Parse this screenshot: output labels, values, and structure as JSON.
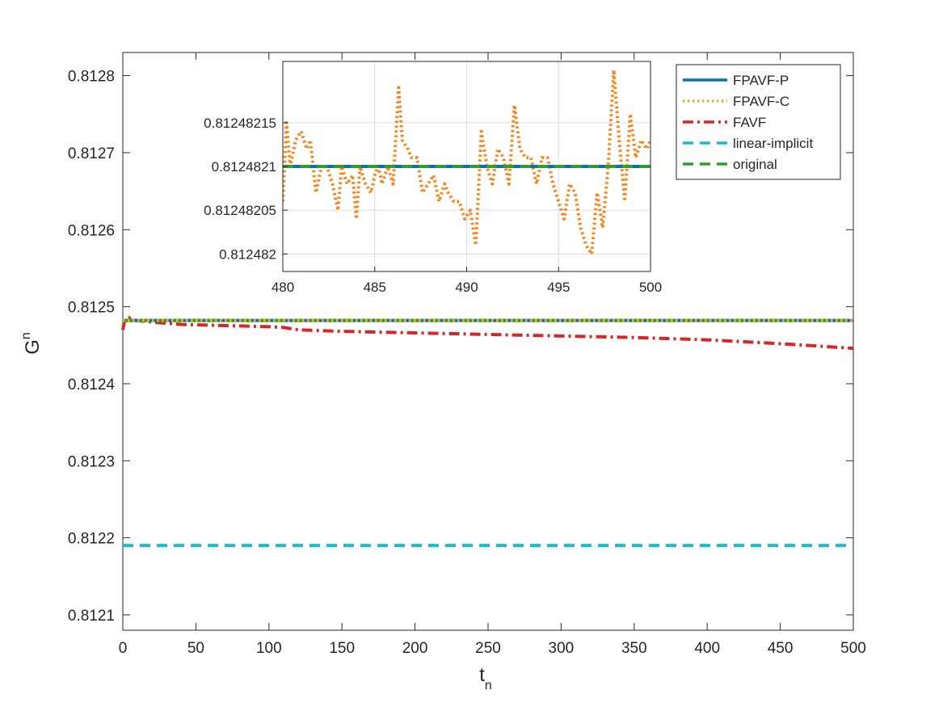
{
  "chart_data": [
    {
      "type": "line",
      "title": "",
      "xlabel": {
        "base": "t",
        "subscript": "n"
      },
      "ylabel": {
        "base": "G",
        "superscript": "n"
      },
      "xlim": [
        0,
        500
      ],
      "ylim": [
        0.81208,
        0.81283
      ],
      "xticks": [
        0,
        50,
        100,
        150,
        200,
        250,
        300,
        350,
        400,
        450,
        500
      ],
      "yticks": [
        0.8121,
        0.8122,
        0.8123,
        0.8124,
        0.8125,
        0.8126,
        0.8127,
        0.8128
      ],
      "grid": false,
      "legend": {
        "position": "top-right",
        "entries": [
          "FPAVF-P",
          "FPAVF-C",
          "FAVF",
          "linear-implicit",
          "original"
        ]
      },
      "series": [
        {
          "name": "FPAVF-P",
          "color": "#0072BD",
          "style": "solid",
          "x": [
            0,
            500
          ],
          "y": [
            0.8124821,
            0.8124821
          ]
        },
        {
          "name": "FPAVF-C",
          "color": "#EDB120",
          "style": "dotted",
          "x": [
            0,
            500
          ],
          "y": [
            0.8124821,
            0.8124821
          ]
        },
        {
          "name": "FAVF",
          "color": "#D62728",
          "style": "dashdot",
          "x": [
            0,
            1,
            2,
            4,
            6,
            10,
            20,
            40,
            60,
            80,
            100,
            110,
            120,
            150,
            200,
            250,
            300,
            350,
            400,
            450,
            500
          ],
          "y": [
            0.81247,
            0.81248,
            0.812484,
            0.812486,
            0.812483,
            0.812482,
            0.81248,
            0.812477,
            0.812476,
            0.812475,
            0.812474,
            0.812473,
            0.81247,
            0.812468,
            0.812466,
            0.812464,
            0.812462,
            0.81246,
            0.812457,
            0.812452,
            0.812446
          ]
        },
        {
          "name": "linear-implicit",
          "color": "#17BECF",
          "style": "dashed",
          "x": [
            0,
            500
          ],
          "y": [
            0.81219,
            0.81219
          ]
        },
        {
          "name": "original",
          "color": "#2CA02C",
          "style": "dashed",
          "x": [
            0,
            500
          ],
          "y": [
            0.8124822,
            0.8124822
          ]
        }
      ]
    },
    {
      "type": "line",
      "title": "",
      "xlabel": "",
      "ylabel": "",
      "xlim": [
        480,
        500
      ],
      "ylim": [
        0.81248198,
        0.81248222
      ],
      "xticks": [
        480,
        485,
        490,
        495,
        500
      ],
      "yticks": [
        0.812482,
        0.81248205,
        0.8124821,
        0.81248215
      ],
      "ytick_labels": [
        "0.812482",
        "0.81248205",
        "0.8124821",
        "0.81248215"
      ],
      "grid": true,
      "series": [
        {
          "name": "FPAVF-C",
          "color": "#FF7F0E",
          "style": "dotted",
          "x": [
            480,
            480.2,
            480.4,
            480.7,
            481,
            481.3,
            481.5,
            481.8,
            482.1,
            482.4,
            482.7,
            483,
            483.2,
            483.5,
            483.8,
            484,
            484.2,
            484.5,
            484.8,
            485,
            485.2,
            485.4,
            485.7,
            486,
            486.3,
            486.5,
            486.8,
            487,
            487.3,
            487.6,
            487.9,
            488.2,
            488.5,
            488.8,
            489,
            489.3,
            489.6,
            489.9,
            490.2,
            490.5,
            490.8,
            491.1,
            491.4,
            491.7,
            492,
            492.3,
            492.6,
            492.9,
            493.2,
            493.5,
            493.8,
            494.1,
            494.4,
            494.7,
            495,
            495.3,
            495.6,
            495.9,
            496.2,
            496.5,
            496.8,
            497.1,
            497.4,
            497.7,
            498,
            498.3,
            498.6,
            498.9,
            499.2,
            499.5,
            499.8,
            500
          ],
          "y": [
            0.81248206,
            0.81248215,
            0.8124821,
            0.81248213,
            0.81248214,
            0.81248212,
            0.81248213,
            0.81248207,
            0.8124821,
            0.8124821,
            0.81248208,
            0.81248205,
            0.8124821,
            0.81248208,
            0.81248209,
            0.81248204,
            0.8124821,
            0.81248208,
            0.81248207,
            0.81248209,
            0.8124821,
            0.81248208,
            0.8124821,
            0.81248208,
            0.81248219,
            0.81248213,
            0.81248212,
            0.81248211,
            0.81248211,
            0.81248207,
            0.81248208,
            0.81248209,
            0.81248206,
            0.81248208,
            0.81248207,
            0.81248206,
            0.81248206,
            0.81248204,
            0.81248205,
            0.81248201,
            0.81248214,
            0.8124821,
            0.81248208,
            0.81248212,
            0.81248211,
            0.81248208,
            0.81248217,
            0.81248212,
            0.81248211,
            0.81248211,
            0.81248208,
            0.81248211,
            0.81248211,
            0.81248208,
            0.81248206,
            0.81248204,
            0.81248208,
            0.81248207,
            0.81248203,
            0.81248201,
            0.812482,
            0.81248207,
            0.81248203,
            0.8124821,
            0.81248221,
            0.81248213,
            0.81248206,
            0.81248216,
            0.81248211,
            0.81248213,
            0.81248212,
            0.81248213
          ]
        },
        {
          "name": "FPAVF-P",
          "color": "#0072BD",
          "style": "solid",
          "x": [
            480,
            500
          ],
          "y": [
            0.8124821,
            0.8124821
          ]
        },
        {
          "name": "original",
          "color": "#2CA02C",
          "style": "dashed",
          "x": [
            480,
            500
          ],
          "y": [
            0.8124821,
            0.8124821
          ]
        }
      ]
    }
  ]
}
